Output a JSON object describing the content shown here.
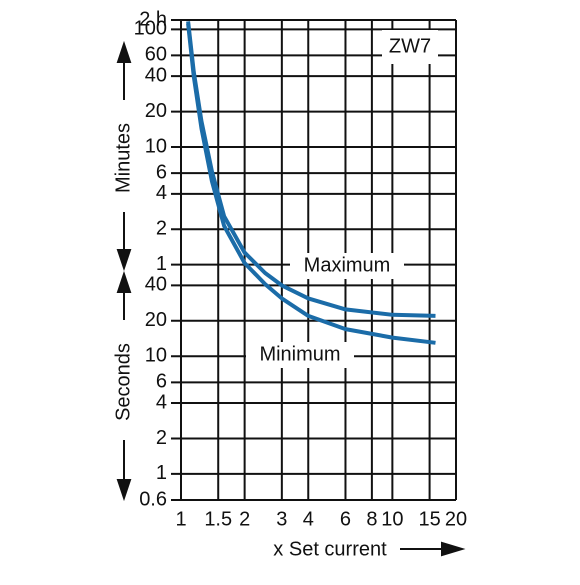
{
  "chart_data": {
    "type": "line",
    "annotation": "ZW7",
    "xlabel": "x Set current",
    "ylabel_upper": "Minutes",
    "ylabel_lower": "Seconds",
    "xscale": "log",
    "yscale": "log",
    "grid": true,
    "xlim": [
      1,
      20
    ],
    "xticks": [
      1,
      1.5,
      2,
      3,
      4,
      6,
      8,
      10,
      15,
      20
    ],
    "ylim": [
      0.6,
      7200
    ],
    "yticks": [
      {
        "value": 7200,
        "label": "2 h"
      },
      {
        "value": 6000,
        "label": "100"
      },
      {
        "value": 3600,
        "label": "60"
      },
      {
        "value": 2400,
        "label": "40"
      },
      {
        "value": 1200,
        "label": "20"
      },
      {
        "value": 600,
        "label": "10"
      },
      {
        "value": 360,
        "label": "6"
      },
      {
        "value": 240,
        "label": "4"
      },
      {
        "value": 120,
        "label": "2"
      },
      {
        "value": 60,
        "label": "1"
      },
      40,
      20,
      10,
      6,
      4,
      2,
      1,
      0.6
    ],
    "series": [
      {
        "name": "Maximum",
        "color": "#1b6ca8",
        "x": [
          1.08,
          1.15,
          1.25,
          1.4,
          1.6,
          2,
          2.5,
          3,
          4,
          6,
          10,
          16
        ],
        "values": [
          7000,
          2600,
          990,
          373,
          155,
          76,
          51,
          40,
          31,
          25,
          22.5,
          22
        ]
      },
      {
        "name": "Minimum",
        "color": "#1b6ca8",
        "x": [
          1.08,
          1.15,
          1.25,
          1.4,
          1.6,
          2,
          2.5,
          3,
          4,
          6,
          10,
          16
        ],
        "values": [
          6700,
          2380,
          860,
          308,
          128,
          62,
          41,
          31,
          22,
          17,
          14.4,
          13
        ]
      }
    ]
  }
}
